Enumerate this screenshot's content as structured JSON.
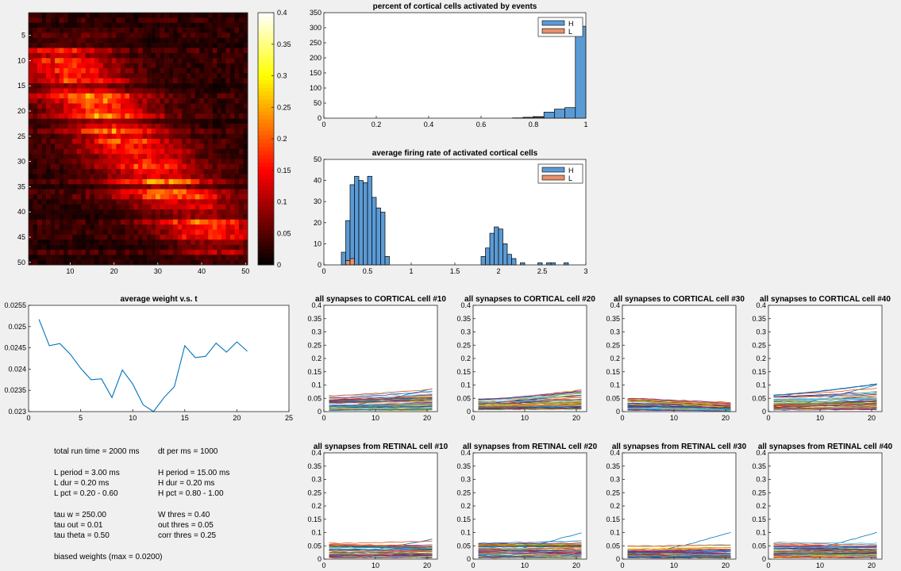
{
  "chart_data": [
    {
      "id": "heatmap",
      "type": "heatmap",
      "title": "",
      "rows": 50,
      "cols": 50,
      "xticks": [
        10,
        20,
        30,
        40,
        50
      ],
      "yticks": [
        5,
        10,
        15,
        20,
        25,
        30,
        35,
        40,
        45,
        50
      ],
      "clim": [
        0,
        0.4
      ],
      "colorbar_ticks": [
        "0",
        "0.05",
        "0.1",
        "0.15",
        "0.2",
        "0.25",
        "0.3",
        "0.35",
        "0.4"
      ],
      "colormap": "hot",
      "band_centers": [
        [
          10,
          8
        ],
        [
          15,
          13
        ],
        [
          20,
          17
        ],
        [
          25,
          22
        ],
        [
          30,
          27
        ],
        [
          35,
          31
        ],
        [
          40,
          38
        ],
        [
          45,
          44
        ]
      ],
      "band_peak": 0.15,
      "background_level": 0.035
    },
    {
      "id": "pct-hist",
      "type": "bar",
      "title": "percent of cortical cells activated by events",
      "xlim": [
        0,
        1
      ],
      "ylim": [
        0,
        350
      ],
      "xticks": [
        "0",
        "0.2",
        "0.4",
        "0.6",
        "0.8",
        "1"
      ],
      "yticks": [
        "0",
        "50",
        "100",
        "150",
        "200",
        "250",
        "300",
        "350"
      ],
      "legend": [
        "H",
        "L"
      ],
      "legend_loc": "top-right",
      "bin_width": 0.04,
      "series": [
        {
          "name": "H",
          "color": "#5b9bd5",
          "bins": [
            [
              0.72,
              0.76,
              1
            ],
            [
              0.76,
              0.8,
              3
            ],
            [
              0.8,
              0.84,
              5
            ],
            [
              0.84,
              0.88,
              20
            ],
            [
              0.88,
              0.92,
              30
            ],
            [
              0.92,
              0.96,
              35
            ],
            [
              0.96,
              1.0,
              305
            ]
          ]
        },
        {
          "name": "L",
          "color": "#e7906b",
          "bins": [
            [
              0.76,
              0.8,
              1
            ],
            [
              0.8,
              0.84,
              3
            ]
          ]
        }
      ]
    },
    {
      "id": "rate-hist",
      "type": "bar",
      "title": "average firing rate of activated cortical cells",
      "xlim": [
        0,
        3
      ],
      "ylim": [
        0,
        50
      ],
      "xticks": [
        "0",
        "0.5",
        "1",
        "1.5",
        "2",
        "2.5",
        "3"
      ],
      "yticks": [
        "0",
        "10",
        "20",
        "30",
        "40",
        "50"
      ],
      "legend": [
        "H",
        "L"
      ],
      "legend_loc": "top-right",
      "series": [
        {
          "name": "H",
          "color": "#5b9bd5",
          "bins": [
            [
              0.2,
              0.25,
              6
            ],
            [
              0.25,
              0.3,
              21
            ],
            [
              0.3,
              0.35,
              38
            ],
            [
              0.35,
              0.4,
              42
            ],
            [
              0.4,
              0.45,
              40
            ],
            [
              0.45,
              0.5,
              39
            ],
            [
              0.5,
              0.55,
              42
            ],
            [
              0.55,
              0.6,
              32
            ],
            [
              0.6,
              0.65,
              27
            ],
            [
              0.65,
              0.7,
              25
            ],
            [
              0.7,
              0.75,
              4
            ],
            [
              1.8,
              1.85,
              4
            ],
            [
              1.85,
              1.9,
              8
            ],
            [
              1.9,
              1.95,
              15
            ],
            [
              1.95,
              2.0,
              18
            ],
            [
              2.0,
              2.05,
              17
            ],
            [
              2.05,
              2.1,
              10
            ],
            [
              2.1,
              2.15,
              5
            ],
            [
              2.15,
              2.2,
              3
            ],
            [
              2.25,
              2.3,
              1
            ],
            [
              2.45,
              2.5,
              1
            ],
            [
              2.55,
              2.6,
              1
            ],
            [
              2.6,
              2.65,
              1
            ],
            [
              2.75,
              2.8,
              1
            ]
          ]
        },
        {
          "name": "L",
          "color": "#e7906b",
          "bins": [
            [
              0.25,
              0.3,
              2
            ],
            [
              0.3,
              0.35,
              3
            ]
          ]
        }
      ]
    },
    {
      "id": "avg-weight",
      "type": "line",
      "title": "average weight v.s. t",
      "xlim": [
        0,
        25
      ],
      "ylim": [
        0.023,
        0.0255
      ],
      "xticks": [
        "0",
        "5",
        "10",
        "15",
        "20",
        "25"
      ],
      "yticks": [
        "0.023",
        "0.0235",
        "0.024",
        "0.0245",
        "0.025",
        "0.0255"
      ],
      "series": [
        {
          "color": "#0072bd",
          "x": [
            1,
            2,
            3,
            4,
            5,
            6,
            7,
            8,
            9,
            10,
            11,
            12,
            13,
            14,
            15,
            16,
            17,
            18,
            19,
            20,
            21
          ],
          "y": [
            0.02517,
            0.02455,
            0.0246,
            0.02435,
            0.02402,
            0.02375,
            0.02377,
            0.02333,
            0.02398,
            0.02365,
            0.02316,
            0.023,
            0.02333,
            0.02359,
            0.02455,
            0.02427,
            0.0243,
            0.02461,
            0.0244,
            0.02464,
            0.02442
          ]
        }
      ]
    },
    {
      "id": "cort-10",
      "type": "line",
      "title": "all synapses to CORTICAL cell #10",
      "xlim": [
        0,
        22
      ],
      "ylim": [
        0,
        0.4
      ],
      "xticks": [
        "0",
        "10",
        "20"
      ],
      "yticks": [
        "0",
        "0.05",
        "0.1",
        "0.15",
        "0.2",
        "0.25",
        "0.3",
        "0.35",
        "0.4"
      ],
      "n_lines": 50,
      "x_range": [
        1,
        21
      ],
      "start_range": [
        0.005,
        0.062
      ],
      "end_range": [
        0.005,
        0.087
      ],
      "trend": "up"
    },
    {
      "id": "cort-20",
      "type": "line",
      "title": "all synapses to CORTICAL cell #20",
      "xlim": [
        0,
        22
      ],
      "ylim": [
        0,
        0.4
      ],
      "xticks": [
        "0",
        "10",
        "20"
      ],
      "yticks": [
        "0",
        "0.05",
        "0.1",
        "0.15",
        "0.2",
        "0.25",
        "0.3",
        "0.35",
        "0.4"
      ],
      "n_lines": 50,
      "x_range": [
        1,
        21
      ],
      "start_range": [
        0.008,
        0.048
      ],
      "end_range": [
        0.008,
        0.083
      ],
      "trend": "up"
    },
    {
      "id": "cort-30",
      "type": "line",
      "title": "all synapses to CORTICAL cell #30",
      "xlim": [
        0,
        22
      ],
      "ylim": [
        0,
        0.4
      ],
      "xticks": [
        "0",
        "10",
        "20"
      ],
      "yticks": [
        "0",
        "0.05",
        "0.1",
        "0.15",
        "0.2",
        "0.25",
        "0.3",
        "0.35",
        "0.4"
      ],
      "n_lines": 50,
      "x_range": [
        1,
        21
      ],
      "start_range": [
        0.005,
        0.052
      ],
      "end_range": [
        0.003,
        0.03
      ],
      "trend": "down"
    },
    {
      "id": "cort-40",
      "type": "line",
      "title": "all synapses to CORTICAL cell #40",
      "xlim": [
        0,
        22
      ],
      "ylim": [
        0,
        0.4
      ],
      "xticks": [
        "0",
        "10",
        "20"
      ],
      "yticks": [
        "0",
        "0.05",
        "0.1",
        "0.15",
        "0.2",
        "0.25",
        "0.3",
        "0.35",
        "0.4"
      ],
      "n_lines": 50,
      "x_range": [
        1,
        21
      ],
      "start_range": [
        0.005,
        0.065
      ],
      "end_range": [
        0.005,
        0.102
      ],
      "trend": "up"
    },
    {
      "id": "ret-10",
      "type": "line",
      "title": "all synapses from RETINAL cell #10",
      "xlim": [
        0,
        22
      ],
      "ylim": [
        0,
        0.4
      ],
      "xticks": [
        "0",
        "10",
        "20"
      ],
      "yticks": [
        "0",
        "0.05",
        "0.1",
        "0.15",
        "0.2",
        "0.25",
        "0.3",
        "0.35",
        "0.4"
      ],
      "n_lines": 50,
      "x_range": [
        1,
        21
      ],
      "start_range": [
        0.005,
        0.06
      ],
      "end_range": [
        0.005,
        0.075
      ],
      "trend": "flat"
    },
    {
      "id": "ret-20",
      "type": "line",
      "title": "all synapses from RETINAL cell #20",
      "xlim": [
        0,
        22
      ],
      "ylim": [
        0,
        0.4
      ],
      "xticks": [
        "0",
        "10",
        "20"
      ],
      "yticks": [
        "0",
        "0.05",
        "0.1",
        "0.15",
        "0.2",
        "0.25",
        "0.3",
        "0.35",
        "0.4"
      ],
      "n_lines": 50,
      "x_range": [
        1,
        21
      ],
      "start_range": [
        0.005,
        0.06
      ],
      "end_range": [
        0.005,
        0.1
      ],
      "trend": "flat"
    },
    {
      "id": "ret-30",
      "type": "line",
      "title": "all synapses from RETINAL cell #30",
      "xlim": [
        0,
        22
      ],
      "ylim": [
        0,
        0.4
      ],
      "xticks": [
        "0",
        "10",
        "20"
      ],
      "yticks": [
        "0",
        "0.05",
        "0.1",
        "0.15",
        "0.2",
        "0.25",
        "0.3",
        "0.35",
        "0.4"
      ],
      "n_lines": 50,
      "x_range": [
        1,
        21
      ],
      "start_range": [
        0.005,
        0.05
      ],
      "end_range": [
        0.005,
        0.1
      ],
      "trend": "flat"
    },
    {
      "id": "ret-40",
      "type": "line",
      "title": "all synapses from RETINAL cell #40",
      "xlim": [
        0,
        22
      ],
      "ylim": [
        0,
        0.4
      ],
      "xticks": [
        "0",
        "10",
        "20"
      ],
      "yticks": [
        "0",
        "0.05",
        "0.1",
        "0.15",
        "0.2",
        "0.25",
        "0.3",
        "0.35",
        "0.4"
      ],
      "n_lines": 50,
      "x_range": [
        1,
        21
      ],
      "start_range": [
        0.005,
        0.065
      ],
      "end_range": [
        0.005,
        0.1
      ],
      "trend": "flat"
    }
  ],
  "params": {
    "col1": [
      "total run time = 2000 ms",
      "",
      "L period = 3.00 ms",
      "L dur = 0.20 ms",
      "L pct = 0.20 - 0.60",
      "",
      "tau w = 250.00",
      "tau out = 0.01",
      "tau theta = 0.50",
      "",
      "biased weights (max = 0.0200)"
    ],
    "col2": [
      "dt per ms = 1000",
      "",
      "H period = 15.00 ms",
      "H dur = 0.20 ms",
      "H pct = 0.80 - 1.00",
      "",
      "W thres = 0.40",
      "out thres = 0.05",
      "corr thres = 0.25"
    ]
  },
  "colors": {
    "background": "#f0f0f0",
    "axes_bg": "#ffffff",
    "H": "#5b9bd5",
    "L": "#e7906b",
    "line": "#0072bd"
  }
}
